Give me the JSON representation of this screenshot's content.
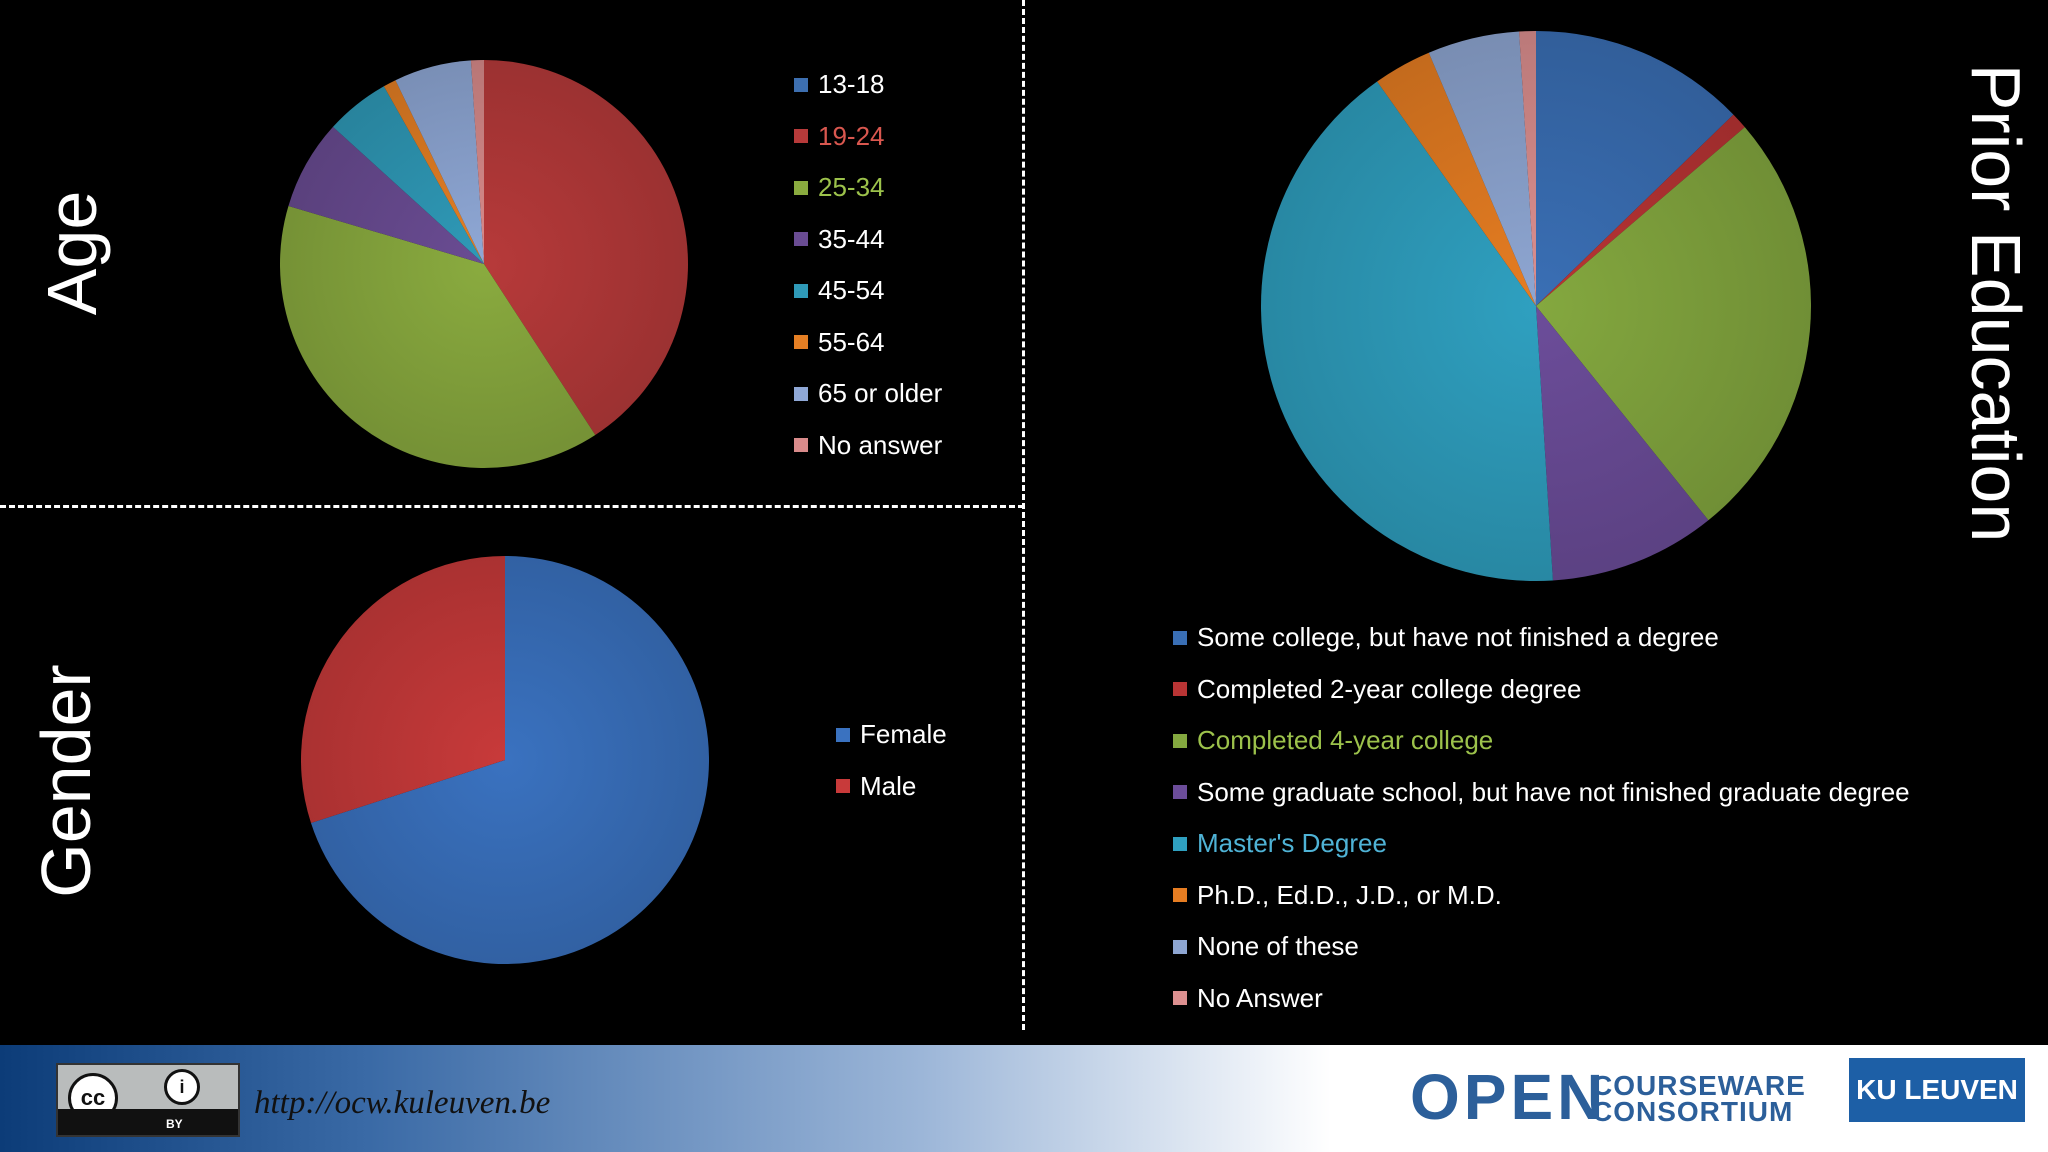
{
  "chart_data": [
    {
      "type": "pie",
      "title": "Age",
      "categories": [
        "13-18",
        "19-24",
        "25-34",
        "35-44",
        "45-54",
        "55-64",
        "65 or older",
        "No answer"
      ],
      "values": [
        0,
        40,
        38,
        7,
        5,
        1,
        6,
        1
      ],
      "colors": [
        "#3d6fb0",
        "#b73a3a",
        "#8aab3f",
        "#6a4c93",
        "#2f9ab8",
        "#e57f24",
        "#8fa8d6",
        "#d98b8b"
      ],
      "legend_position": "right"
    },
    {
      "type": "pie",
      "title": "Gender",
      "categories": [
        "Female",
        "Male"
      ],
      "values": [
        70,
        30
      ],
      "colors": [
        "#3a72c0",
        "#c83a3a"
      ],
      "legend_position": "right"
    },
    {
      "type": "pie",
      "title": "Prior Education",
      "categories": [
        "Some college, but have not finished a degree",
        "Completed 2-year college degree",
        "Completed 4-year college",
        "Some graduate school, but have not finished graduate degree",
        "Master's Degree",
        "Ph.D., Ed.D., J.D., or M.D.",
        "None of these",
        "No Answer"
      ],
      "values": [
        13,
        1,
        26,
        10,
        42,
        3.5,
        5.5,
        1
      ],
      "colors": [
        "#3a6fb5",
        "#b93434",
        "#84a83f",
        "#6c4d9a",
        "#2fa0c0",
        "#e67d22",
        "#8ea6d2",
        "#dc8f8f"
      ],
      "legend_position": "bottom"
    }
  ],
  "legend_label_colors": {
    "age": [
      "#ffffff",
      "#d9574f",
      "#9cc24b",
      "#ffffff",
      "#ffffff",
      "#ffffff",
      "#ffffff",
      "#ffffff"
    ],
    "gender": [
      "#ffffff",
      "#ffffff"
    ],
    "edu": [
      "#ffffff",
      "#ffffff",
      "#9cc24b",
      "#ffffff",
      "#4fb3d6",
      "#ffffff",
      "#ffffff",
      "#ffffff"
    ]
  },
  "footer": {
    "license_badge": "cc",
    "license_by": "BY",
    "url": "http://ocw.kuleuven.be",
    "ocw_open": "OPEN",
    "ocw_line1": "COURSEWARE",
    "ocw_line2": "CONSORTIUM",
    "kul": "KU LEUVEN"
  }
}
